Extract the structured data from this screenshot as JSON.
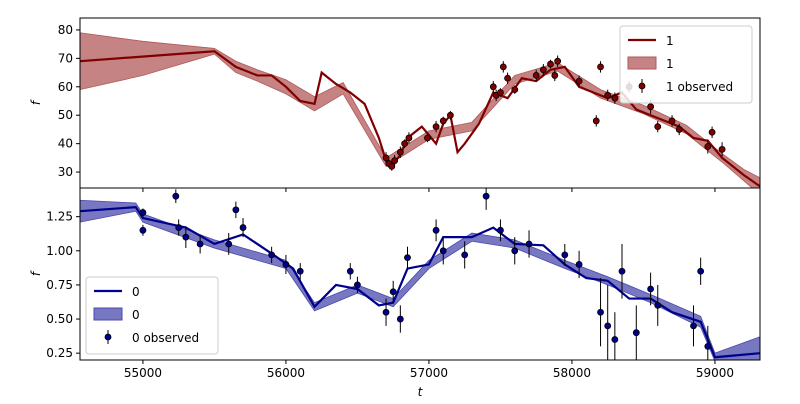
{
  "chart_data": [
    {
      "type": "line",
      "ylabel": "f",
      "legend": "upper right",
      "xlim": [
        54560,
        59315
      ],
      "xticks": [
        55000,
        56000,
        57000,
        58000,
        59000
      ],
      "ylim": [
        24.4,
        84.2
      ],
      "yticks": [
        30,
        40,
        50,
        60,
        70,
        80
      ],
      "series": [
        {
          "name": "1",
          "type": "line",
          "color": "#800000",
          "x": [
            54560,
            55500,
            55650,
            55800,
            55900,
            56000,
            56100,
            56200,
            56250,
            56350,
            56450,
            56550,
            56650,
            56700,
            56750,
            56800,
            56850,
            56950,
            57000,
            57050,
            57100,
            57150,
            57200,
            57250,
            57350,
            57450,
            57550,
            57650,
            57750,
            57850,
            57950,
            58050,
            58150,
            58250,
            58350,
            58450,
            58550,
            58650,
            58750,
            58850,
            58950,
            59050,
            59200,
            59315
          ],
          "values": [
            69,
            72.5,
            67,
            64,
            64,
            60,
            55,
            54,
            65,
            61,
            58,
            54,
            42,
            34,
            33,
            36,
            42,
            46,
            43,
            40,
            47,
            50,
            37,
            40,
            47,
            58,
            56,
            63,
            62,
            66,
            67,
            60,
            58,
            56,
            58,
            52,
            50,
            48,
            46,
            42,
            41,
            35,
            29,
            25
          ]
        },
        {
          "name": "1",
          "type": "band",
          "color": "#b25a5a",
          "x": [
            54560,
            55000,
            55500,
            55650,
            55800,
            56000,
            56200,
            56400,
            56700,
            57000,
            57300,
            57600,
            57900,
            58200,
            58500,
            58800,
            59050,
            59200,
            59315
          ],
          "lower": [
            59,
            64,
            71.5,
            65,
            62,
            57.5,
            51.5,
            57.5,
            32,
            41.5,
            44.5,
            61,
            65.5,
            56,
            50.5,
            43.5,
            33.5,
            27,
            22
          ],
          "upper": [
            79,
            76,
            73.5,
            69,
            66,
            62.5,
            56.5,
            61.5,
            35,
            44.5,
            47.5,
            64,
            68.5,
            59,
            53.5,
            46.5,
            36.5,
            31,
            28
          ]
        },
        {
          "name": "1 observed",
          "type": "errorbar",
          "color": "#800000",
          "x": [
            56700,
            56720,
            56740,
            56760,
            56800,
            56830,
            56860,
            56990,
            57050,
            57100,
            57150,
            57450,
            57470,
            57500,
            57520,
            57550,
            57600,
            57750,
            57800,
            57850,
            57880,
            57900,
            58050,
            58170,
            58200,
            58250,
            58300,
            58400,
            58550,
            58600,
            58700,
            58750,
            58950,
            58980,
            59050
          ],
          "values": [
            35,
            33,
            32,
            34,
            37,
            40,
            42,
            42,
            46,
            48,
            50,
            60,
            57,
            58,
            67,
            63,
            59,
            64,
            66,
            68,
            64,
            69,
            62,
            48,
            67,
            57,
            56,
            60,
            53,
            46,
            48,
            45,
            39,
            44,
            38
          ],
          "errors": [
            2,
            1.5,
            1.5,
            2,
            2,
            1.5,
            2,
            1.5,
            2,
            1.5,
            1.5,
            2,
            2,
            1.5,
            2,
            2,
            1.5,
            2,
            2,
            1.5,
            2,
            2,
            2,
            2,
            2,
            2,
            2,
            2,
            2.5,
            2,
            2,
            2,
            2.5,
            2,
            2.5
          ]
        }
      ]
    },
    {
      "type": "line",
      "ylabel": "f",
      "xlabel": "t",
      "legend": "lower left",
      "xlim": [
        54560,
        59315
      ],
      "xticks": [
        55000,
        56000,
        57000,
        58000,
        59000
      ],
      "ylim": [
        0.2,
        1.46
      ],
      "yticks": [
        0.25,
        {
          "value": 0.5,
          "label": "0.50"
        },
        0.75,
        {
          "value": 1.0,
          "label": "1.00"
        },
        1.25
      ],
      "series": [
        {
          "name": "0",
          "type": "line",
          "color": "#00008b",
          "x": [
            54560,
            54950,
            55000,
            55300,
            55500,
            55700,
            55900,
            56050,
            56200,
            56350,
            56500,
            56650,
            56750,
            56850,
            57000,
            57100,
            57300,
            57450,
            57600,
            57800,
            57950,
            58100,
            58250,
            58400,
            58550,
            58700,
            58900,
            59000,
            59315
          ],
          "values": [
            1.29,
            1.32,
            1.24,
            1.17,
            1.05,
            1.12,
            0.98,
            0.87,
            0.59,
            0.75,
            0.72,
            0.6,
            0.62,
            0.87,
            0.9,
            1.1,
            1.1,
            1.17,
            1.05,
            1.04,
            0.9,
            0.8,
            0.78,
            0.65,
            0.65,
            0.55,
            0.48,
            0.22,
            0.25
          ]
        },
        {
          "name": "0",
          "type": "band",
          "color": "#4a4aad",
          "x": [
            54560,
            54950,
            55000,
            55500,
            56000,
            56200,
            56500,
            56750,
            57000,
            57300,
            57600,
            57950,
            58250,
            58550,
            58900,
            59000,
            59315
          ],
          "lower": [
            1.21,
            1.29,
            1.21,
            1.02,
            0.87,
            0.56,
            0.69,
            0.59,
            0.87,
            1.07,
            1.02,
            0.87,
            0.75,
            0.62,
            0.44,
            0.19,
            0.13
          ],
          "upper": [
            1.37,
            1.35,
            1.27,
            1.08,
            0.93,
            0.62,
            0.75,
            0.65,
            0.93,
            1.13,
            1.08,
            0.93,
            0.81,
            0.68,
            0.52,
            0.25,
            0.37
          ]
        },
        {
          "name": "0 observed",
          "type": "errorbar",
          "color": "#00008b",
          "x": [
            55000,
            55000,
            55230,
            55250,
            55300,
            55400,
            55600,
            55650,
            55700,
            55900,
            56000,
            56100,
            56450,
            56500,
            56700,
            56750,
            56800,
            56850,
            57050,
            57100,
            57250,
            57400,
            57500,
            57600,
            57700,
            57950,
            58050,
            58200,
            58250,
            58300,
            58350,
            58450,
            58550,
            58600,
            58850,
            58900,
            58950
          ],
          "values": [
            1.28,
            1.15,
            1.4,
            1.17,
            1.1,
            1.05,
            1.05,
            1.3,
            1.17,
            0.97,
            0.9,
            0.85,
            0.85,
            0.75,
            0.55,
            0.7,
            0.5,
            0.95,
            1.15,
            1.0,
            0.97,
            1.4,
            1.15,
            1.0,
            1.05,
            0.97,
            0.9,
            0.55,
            0.45,
            0.35,
            0.85,
            0.4,
            0.72,
            0.6,
            0.45,
            0.85,
            0.3
          ],
          "errors": [
            0.03,
            0.04,
            0.05,
            0.06,
            0.08,
            0.07,
            0.08,
            0.06,
            0.07,
            0.06,
            0.07,
            0.06,
            0.06,
            0.06,
            0.1,
            0.08,
            0.1,
            0.08,
            0.08,
            0.1,
            0.1,
            0.1,
            0.08,
            0.1,
            0.1,
            0.08,
            0.1,
            0.25,
            0.3,
            0.2,
            0.2,
            0.2,
            0.12,
            0.15,
            0.15,
            0.1,
            0.15
          ]
        }
      ]
    }
  ]
}
